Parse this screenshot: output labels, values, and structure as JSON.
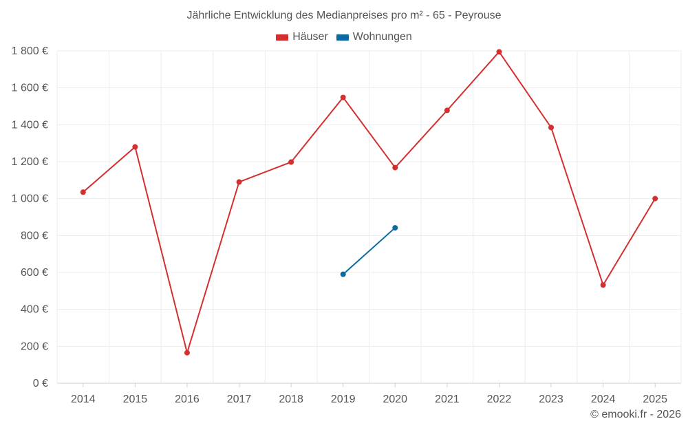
{
  "chart_data": {
    "type": "line",
    "title": "Jährliche Entwicklung des Medianpreises pro m² - 65 - Peyrouse",
    "categories": [
      "2014",
      "2015",
      "2016",
      "2017",
      "2018",
      "2019",
      "2020",
      "2021",
      "2022",
      "2023",
      "2024",
      "2025"
    ],
    "series": [
      {
        "name": "Häuser",
        "color": "#d32f2f",
        "values": [
          1035,
          1280,
          165,
          1090,
          1198,
          1548,
          1168,
          1478,
          1795,
          1385,
          532,
          1000
        ]
      },
      {
        "name": "Wohnungen",
        "color": "#0a6aa1",
        "values": [
          null,
          null,
          null,
          null,
          null,
          590,
          842,
          null,
          null,
          null,
          null,
          null
        ]
      }
    ],
    "ylim": [
      0,
      1800
    ],
    "yticks": [
      0,
      200,
      400,
      600,
      800,
      1000,
      1200,
      1400,
      1600,
      1800
    ],
    "ytick_labels": [
      "0 €",
      "200 €",
      "400 €",
      "600 €",
      "800 €",
      "1 000 €",
      "1 200 €",
      "1 400 €",
      "1 600 €",
      "1 800 €"
    ],
    "xlabel": "",
    "ylabel": "",
    "grid": true,
    "legend_position": "top-center",
    "credit": "© emooki.fr - 2026"
  }
}
